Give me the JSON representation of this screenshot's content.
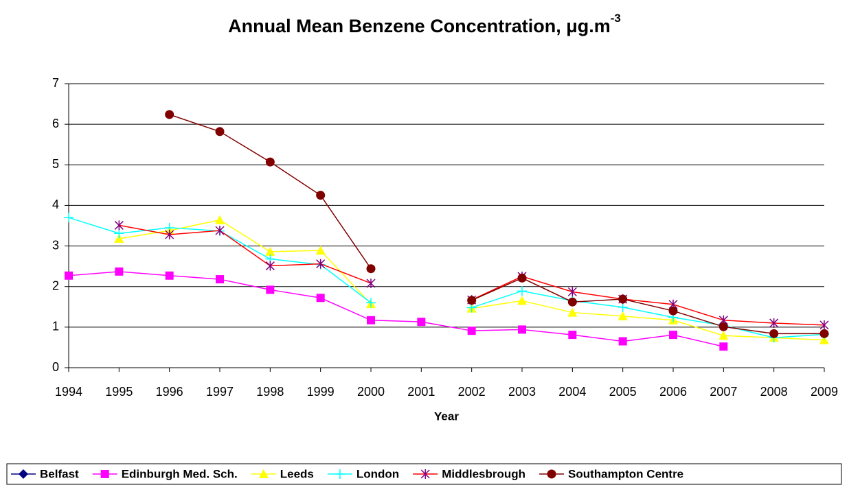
{
  "chart_data": {
    "type": "line",
    "title": "Annual Mean Benzene Concentration, μg.m",
    "title_superscript": "-3",
    "x_label": "Year",
    "categories": [
      "1994",
      "1995",
      "1996",
      "1997",
      "1998",
      "1999",
      "2000",
      "2001",
      "2002",
      "2003",
      "2004",
      "2005",
      "2006",
      "2007",
      "2008",
      "2009"
    ],
    "ylim": [
      0,
      7
    ],
    "yticks": [
      0,
      1,
      2,
      3,
      4,
      5,
      6,
      7
    ],
    "grid": true,
    "legend": "bottom",
    "series": [
      {
        "name": "Belfast",
        "color": "#000080",
        "marker": "diamond",
        "marker_color": "#000080",
        "values": [
          null,
          null,
          null,
          null,
          null,
          null,
          null,
          null,
          null,
          null,
          null,
          null,
          null,
          null,
          null,
          null
        ]
      },
      {
        "name": "Edinburgh Med. Sch.",
        "color": "#ff00ff",
        "marker": "square",
        "marker_color": "#ff00ff",
        "values": [
          2.27,
          2.37,
          2.27,
          2.18,
          1.92,
          1.72,
          1.17,
          1.13,
          0.91,
          0.94,
          0.81,
          0.65,
          0.81,
          0.52,
          null,
          null
        ]
      },
      {
        "name": "Leeds",
        "color": "#ffff00",
        "marker": "triangle",
        "marker_color": "#ffff00",
        "values": [
          null,
          3.18,
          3.38,
          3.64,
          2.86,
          2.89,
          1.57,
          null,
          1.46,
          1.65,
          1.36,
          1.27,
          1.17,
          0.79,
          0.74,
          0.68
        ]
      },
      {
        "name": "London",
        "color": "#00ffff",
        "marker": "plus",
        "marker_color": "#00ffff",
        "values": [
          3.7,
          3.31,
          3.45,
          3.37,
          2.68,
          2.54,
          1.6,
          null,
          1.48,
          1.89,
          1.65,
          1.49,
          1.24,
          1.04,
          0.74,
          0.82
        ]
      },
      {
        "name": "Middlesbrough",
        "color": "#ff0000",
        "marker": "star",
        "marker_color": "#800080",
        "values": [
          null,
          3.51,
          3.28,
          3.38,
          2.51,
          2.56,
          2.08,
          null,
          1.67,
          2.25,
          1.87,
          1.69,
          1.56,
          1.17,
          1.1,
          1.05
        ]
      },
      {
        "name": "Southampton Centre",
        "color": "#800000",
        "marker": "circle",
        "marker_color": "#800000",
        "values": [
          null,
          null,
          6.24,
          5.82,
          5.07,
          4.25,
          2.44,
          null,
          1.66,
          2.21,
          1.62,
          1.69,
          1.4,
          1.01,
          0.84,
          0.84
        ]
      }
    ]
  }
}
